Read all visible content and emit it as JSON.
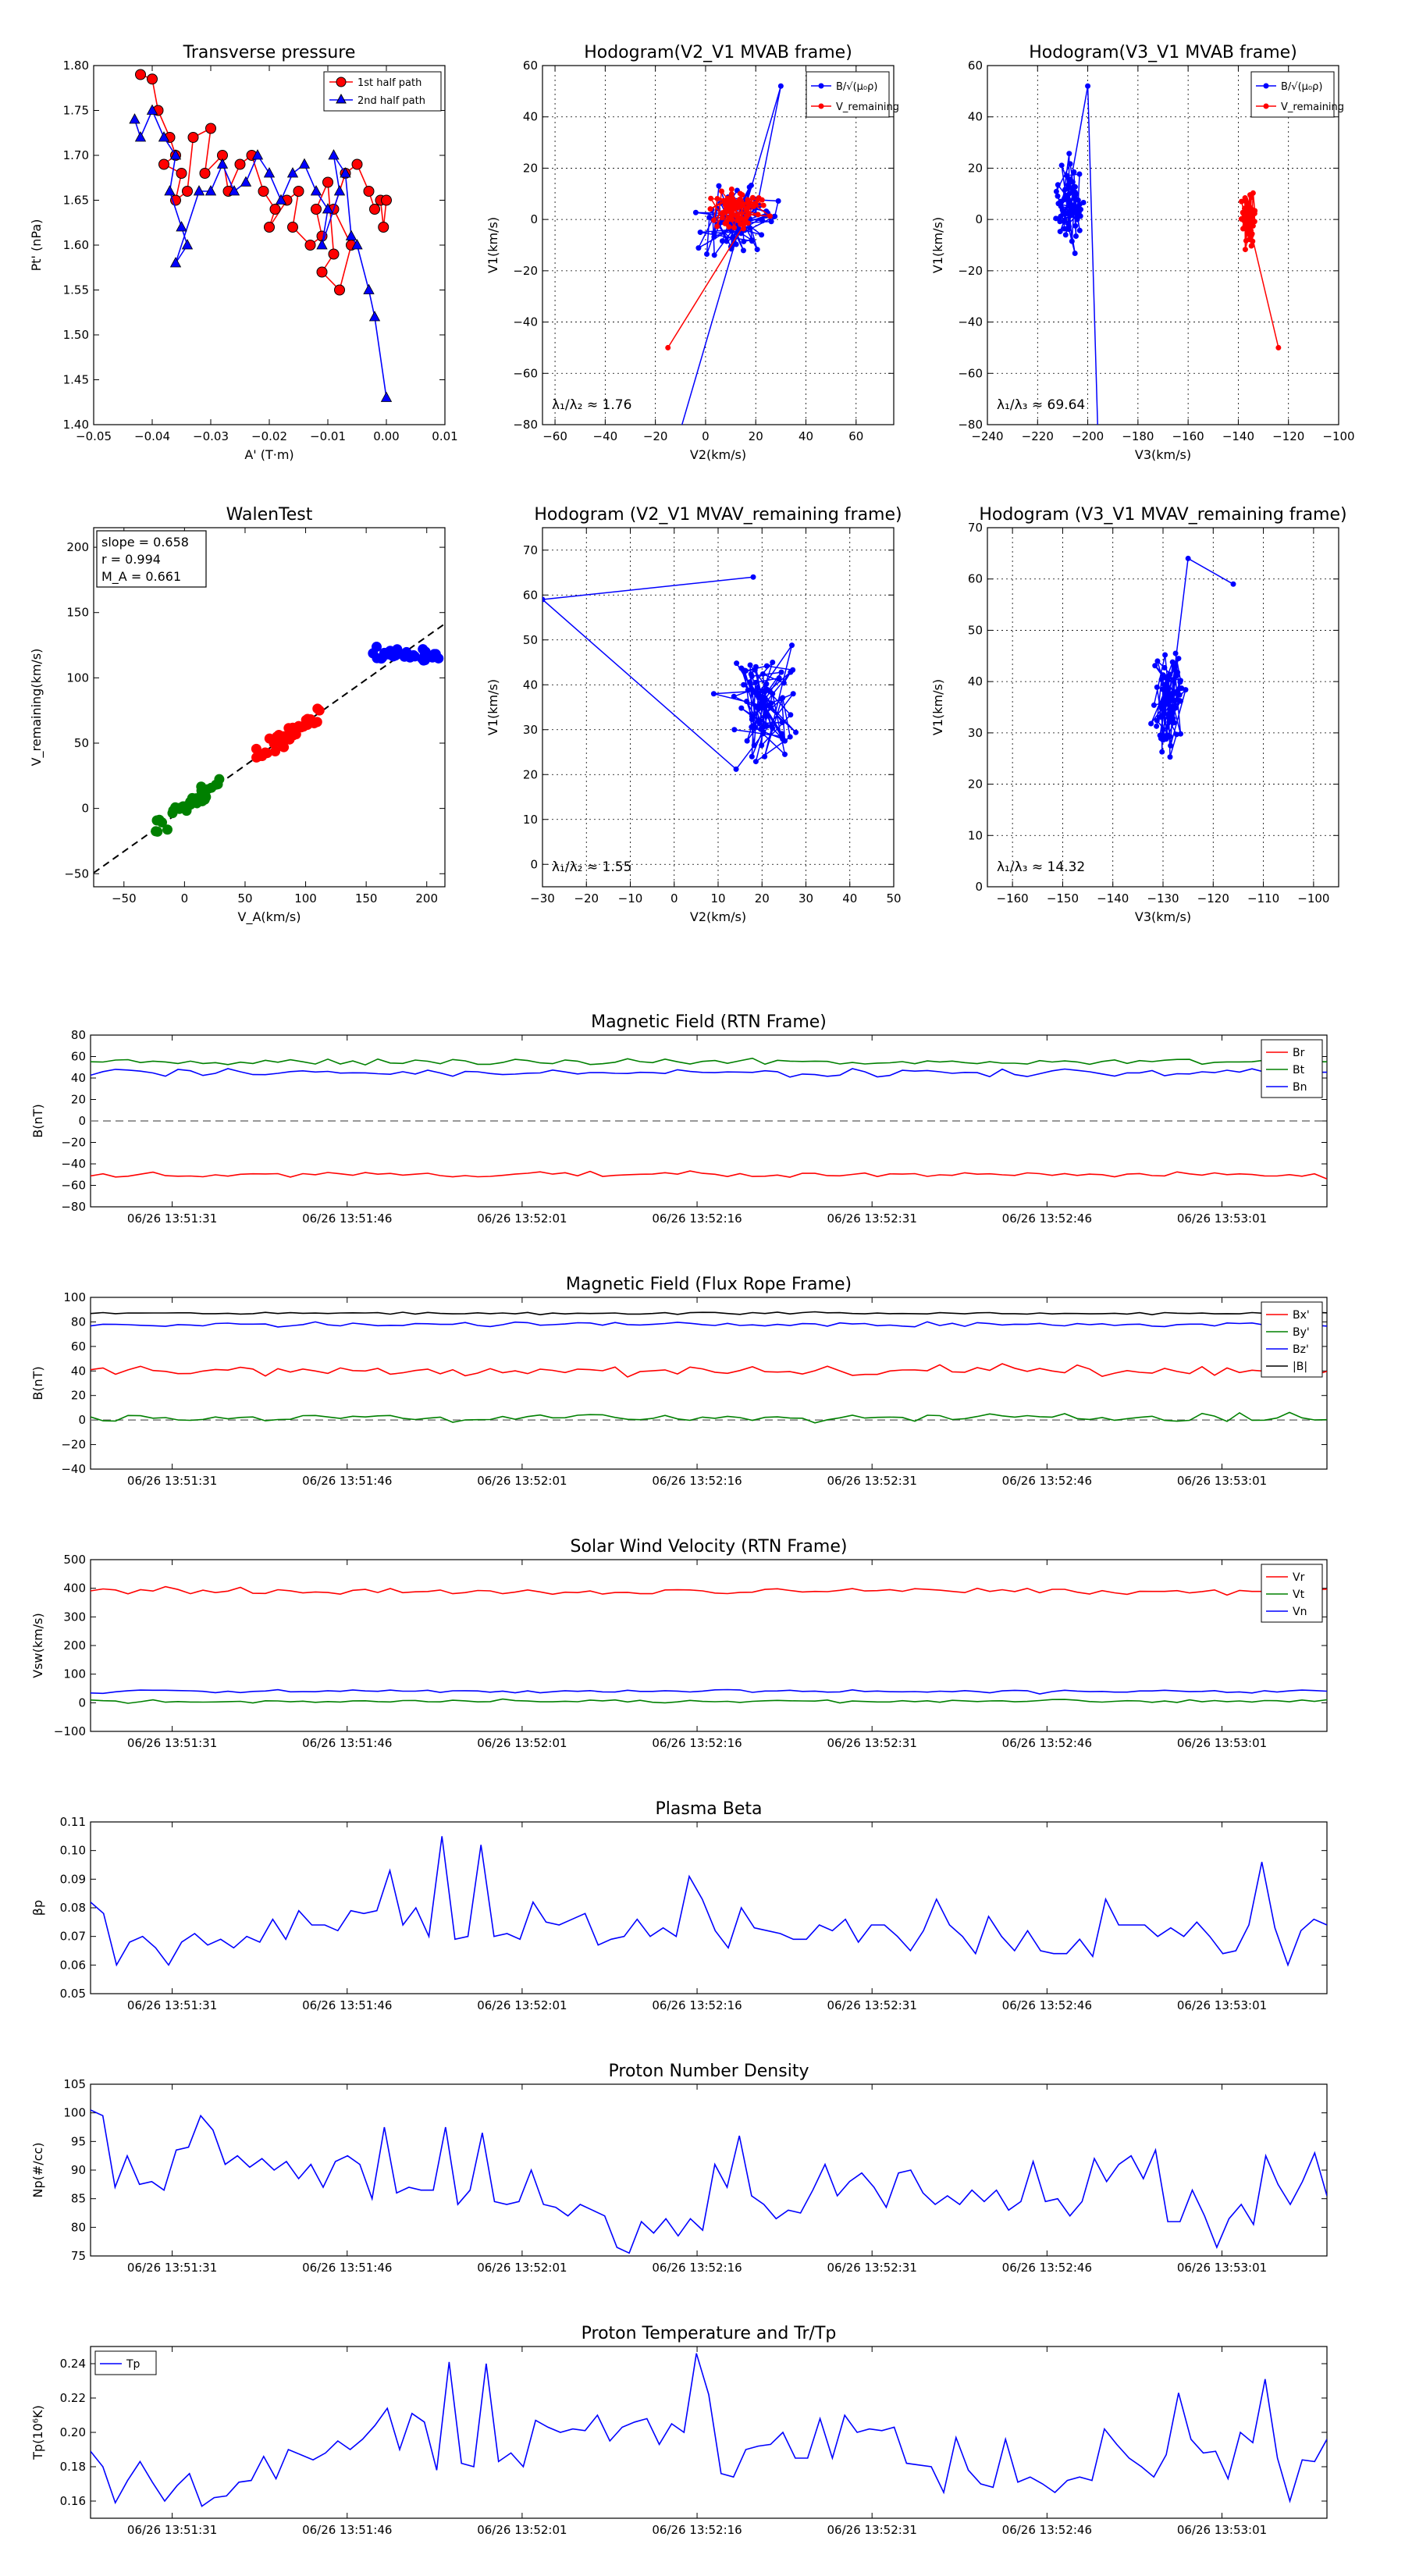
{
  "figure": {
    "description_label": ""
  },
  "chart_data": [
    {
      "id": "pt",
      "type": "line",
      "title": "Transverse pressure",
      "xlabel": "A' (T·m)",
      "ylabel": "Pt' (nPa)",
      "xlim": [
        -0.05,
        0.01
      ],
      "ylim": [
        1.4,
        1.8
      ],
      "xticks": [
        -0.05,
        -0.04,
        -0.03,
        -0.02,
        -0.01,
        0.0,
        0.01
      ],
      "xticklabels": [
        "−0.05",
        "−0.04",
        "−0.03",
        "−0.02",
        "−0.01",
        "0.00",
        "0.01"
      ],
      "yticks": [
        1.4,
        1.45,
        1.5,
        1.55,
        1.6,
        1.65,
        1.7,
        1.75,
        1.8
      ],
      "yticklabels": [
        "1.40",
        "1.45",
        "1.50",
        "1.55",
        "1.60",
        "1.65",
        "1.70",
        "1.75",
        "1.80"
      ],
      "legend": "top-right",
      "series": [
        {
          "name": "1st half path",
          "color": "#ff0000",
          "marker": "circle",
          "x": [
            -0.042,
            -0.04,
            -0.039,
            -0.037,
            -0.036,
            -0.038,
            -0.035,
            -0.036,
            -0.034,
            -0.033,
            -0.03,
            -0.031,
            -0.028,
            -0.027,
            -0.025,
            -0.023,
            -0.021,
            -0.019,
            -0.02,
            -0.017,
            -0.015,
            -0.016,
            -0.013,
            -0.011,
            -0.012,
            -0.01,
            -0.009,
            -0.011,
            -0.008,
            -0.006,
            -0.009,
            -0.007,
            -0.005,
            -0.003,
            -0.002,
            -0.001,
            -0.0005,
            0.0
          ],
          "y": [
            1.79,
            1.785,
            1.75,
            1.72,
            1.7,
            1.69,
            1.68,
            1.65,
            1.66,
            1.72,
            1.73,
            1.68,
            1.7,
            1.66,
            1.69,
            1.7,
            1.66,
            1.64,
            1.62,
            1.65,
            1.66,
            1.62,
            1.6,
            1.61,
            1.64,
            1.67,
            1.59,
            1.57,
            1.55,
            1.6,
            1.64,
            1.68,
            1.69,
            1.66,
            1.64,
            1.65,
            1.62,
            1.65
          ]
        },
        {
          "name": "2nd half path",
          "color": "#0000ff",
          "marker": "triangle",
          "x": [
            -0.043,
            -0.042,
            -0.04,
            -0.038,
            -0.036,
            -0.037,
            -0.035,
            -0.034,
            -0.036,
            -0.032,
            -0.03,
            -0.028,
            -0.026,
            -0.024,
            -0.022,
            -0.02,
            -0.018,
            -0.016,
            -0.014,
            -0.012,
            -0.01,
            -0.011,
            -0.008,
            -0.009,
            -0.007,
            -0.006,
            -0.005,
            -0.003,
            -0.002,
            0.0
          ],
          "y": [
            1.74,
            1.72,
            1.75,
            1.72,
            1.7,
            1.66,
            1.62,
            1.6,
            1.58,
            1.66,
            1.66,
            1.69,
            1.66,
            1.67,
            1.7,
            1.68,
            1.65,
            1.68,
            1.69,
            1.66,
            1.64,
            1.6,
            1.66,
            1.7,
            1.68,
            1.61,
            1.6,
            1.55,
            1.52,
            1.43
          ]
        }
      ]
    },
    {
      "id": "h1",
      "type": "line",
      "title": "Hodogram(V2_V1 MVAB frame)",
      "xlabel": "V2(km/s)",
      "ylabel": "V1(km/s)",
      "xlim": [
        -65,
        75
      ],
      "ylim": [
        -80,
        60
      ],
      "xticks": [
        -60,
        -40,
        -20,
        0,
        20,
        40,
        60
      ],
      "xticklabels": [
        "−60",
        "−40",
        "−20",
        "0",
        "20",
        "40",
        "60"
      ],
      "yticks": [
        -80,
        -60,
        -40,
        -20,
        0,
        20,
        40,
        60
      ],
      "yticklabels": [
        "−80",
        "−60",
        "−40",
        "−20",
        "0",
        "20",
        "40",
        "60"
      ],
      "annotation": "λ₁/λ₂ ≈ 1.76",
      "legend": "top-right",
      "series": [
        {
          "name": "B/√(μ₀ρ)",
          "color": "#0000ff",
          "marker": "dot",
          "x": [],
          "y": []
        },
        {
          "name": "V_remaining",
          "color": "#ff0000",
          "marker": "dot",
          "x": [],
          "y": []
        }
      ]
    },
    {
      "id": "h2",
      "type": "line",
      "title": "Hodogram(V3_V1 MVAB frame)",
      "xlabel": "V3(km/s)",
      "ylabel": "V1(km/s)",
      "xlim": [
        -240,
        -100
      ],
      "ylim": [
        -80,
        60
      ],
      "xticks": [
        -240,
        -220,
        -200,
        -180,
        -160,
        -140,
        -120,
        -100
      ],
      "xticklabels": [
        "−240",
        "−220",
        "−200",
        "−180",
        "−160",
        "−140",
        "−120",
        "−100"
      ],
      "yticks": [
        -80,
        -60,
        -40,
        -20,
        0,
        20,
        40,
        60
      ],
      "yticklabels": [
        "−80",
        "−60",
        "−40",
        "−20",
        "0",
        "20",
        "40",
        "60"
      ],
      "annotation": "λ₁/λ₃ ≈ 69.64",
      "legend": "top-right",
      "series": [
        {
          "name": "B/√(μ₀ρ)",
          "color": "#0000ff",
          "marker": "dot",
          "x": [],
          "y": []
        },
        {
          "name": "V_remaining",
          "color": "#ff0000",
          "marker": "dot",
          "x": [],
          "y": []
        }
      ]
    },
    {
      "id": "walen",
      "type": "scatter",
      "title": "WalenTest",
      "xlabel": "V_A(km/s)",
      "ylabel": "V_remaining(km/s)",
      "xlim": [
        -75,
        215
      ],
      "ylim": [
        -60,
        215
      ],
      "xticks": [
        -50,
        0,
        50,
        100,
        150,
        200
      ],
      "xticklabels": [
        "−50",
        "0",
        "50",
        "100",
        "150",
        "200"
      ],
      "yticks": [
        -50,
        0,
        50,
        100,
        150,
        200
      ],
      "yticklabels": [
        "−50",
        "0",
        "50",
        "100",
        "150",
        "200"
      ],
      "stats": [
        "slope = 0.658",
        "r = 0.994",
        "M_A = 0.661"
      ],
      "fit": {
        "slope": 0.658,
        "intercept": 0
      },
      "series": [
        {
          "name": "green",
          "color": "#008000",
          "x": [],
          "y": []
        },
        {
          "name": "red",
          "color": "#ff0000",
          "x": [],
          "y": []
        },
        {
          "name": "blue",
          "color": "#0000ff",
          "x": [],
          "y": []
        }
      ]
    },
    {
      "id": "h3",
      "type": "line",
      "title": "Hodogram (V2_V1 MVAV_remaining frame)",
      "xlabel": "V2(km/s)",
      "ylabel": "V1(km/s)",
      "xlim": [
        -30,
        50
      ],
      "ylim": [
        -5,
        75
      ],
      "xticks": [
        -30,
        -20,
        -10,
        0,
        10,
        20,
        30,
        40,
        50
      ],
      "xticklabels": [
        "−30",
        "−20",
        "−10",
        "0",
        "10",
        "20",
        "30",
        "40",
        "50"
      ],
      "yticks": [
        0,
        10,
        20,
        30,
        40,
        50,
        60,
        70
      ],
      "yticklabels": [
        "0",
        "10",
        "20",
        "30",
        "40",
        "50",
        "60",
        "70"
      ],
      "annotation": "λ₁/λ₂ ≈ 1.55",
      "series": [
        {
          "name": "V",
          "color": "#0000ff",
          "marker": "dot",
          "x": [],
          "y": []
        }
      ]
    },
    {
      "id": "h4",
      "type": "line",
      "title": "Hodogram (V3_V1 MVAV_remaining frame)",
      "xlabel": "V3(km/s)",
      "ylabel": "V1(km/s)",
      "xlim": [
        -165,
        -95
      ],
      "ylim": [
        0,
        70
      ],
      "xticks": [
        -160,
        -150,
        -140,
        -130,
        -120,
        -110,
        -100
      ],
      "xticklabels": [
        "−160",
        "−150",
        "−140",
        "−130",
        "−120",
        "−110",
        "−100"
      ],
      "yticks": [
        0,
        10,
        20,
        30,
        40,
        50,
        60,
        70
      ],
      "yticklabels": [
        "0",
        "10",
        "20",
        "30",
        "40",
        "50",
        "60",
        "70"
      ],
      "annotation": "λ₁/λ₃ ≈ 14.32",
      "series": [
        {
          "name": "V",
          "color": "#0000ff",
          "marker": "dot",
          "x": [],
          "y": []
        }
      ]
    },
    {
      "id": "bfield",
      "type": "line",
      "title": "Magnetic Field (RTN Frame)",
      "ylabel": "B(nT)",
      "ylim": [
        -80,
        80
      ],
      "yticks": [
        -80,
        -60,
        -40,
        -20,
        0,
        20,
        40,
        60,
        80
      ],
      "yticklabels": [
        "−80",
        "−60",
        "−40",
        "−20",
        "0",
        "20",
        "40",
        "60",
        "80"
      ],
      "zero_line": true,
      "legend": "top-right",
      "series": [
        {
          "name": "Br",
          "color": "#ff0000",
          "values": []
        },
        {
          "name": "Bt",
          "color": "#008000",
          "values": []
        },
        {
          "name": "Bn",
          "color": "#0000ff",
          "values": []
        }
      ]
    },
    {
      "id": "bflux",
      "type": "line",
      "title": "Magnetic Field (Flux Rope Frame)",
      "ylabel": "B(nT)",
      "ylim": [
        -40,
        100
      ],
      "yticks": [
        -40,
        -20,
        0,
        20,
        40,
        60,
        80,
        100
      ],
      "yticklabels": [
        "−40",
        "−20",
        "0",
        "20",
        "40",
        "60",
        "80",
        "100"
      ],
      "zero_line": true,
      "legend": "top-right",
      "series": [
        {
          "name": "Bx'",
          "color": "#ff0000",
          "values": []
        },
        {
          "name": "By'",
          "color": "#008000",
          "values": []
        },
        {
          "name": "Bz'",
          "color": "#0000ff",
          "values": []
        },
        {
          "name": "|B|",
          "color": "#000000",
          "values": []
        }
      ]
    },
    {
      "id": "vsw",
      "type": "line",
      "title": "Solar Wind Velocity (RTN Frame)",
      "ylabel": "Vsw(km/s)",
      "ylim": [
        -100,
        500
      ],
      "yticks": [
        -100,
        0,
        100,
        200,
        300,
        400,
        500
      ],
      "yticklabels": [
        "−100",
        "0",
        "100",
        "200",
        "300",
        "400",
        "500"
      ],
      "legend": "top-right",
      "series": [
        {
          "name": "Vr",
          "color": "#ff0000",
          "values": []
        },
        {
          "name": "Vt",
          "color": "#008000",
          "values": []
        },
        {
          "name": "Vn",
          "color": "#0000ff",
          "values": []
        }
      ]
    },
    {
      "id": "beta",
      "type": "line",
      "title": "Plasma Beta",
      "ylabel": "βp",
      "ylim": [
        0.05,
        0.11
      ],
      "yticks": [
        0.05,
        0.06,
        0.07,
        0.08,
        0.09,
        0.1,
        0.11
      ],
      "yticklabels": [
        "0.05",
        "0.06",
        "0.07",
        "0.08",
        "0.09",
        "0.10",
        "0.11"
      ],
      "series": [
        {
          "name": "beta",
          "color": "#0000ff",
          "values": [
            0.082,
            0.078,
            0.06,
            0.068,
            0.07,
            0.066,
            0.06,
            0.068,
            0.071,
            0.067,
            0.069,
            0.066,
            0.07,
            0.068,
            0.076,
            0.069,
            0.079,
            0.074,
            0.074,
            0.072,
            0.079,
            0.078,
            0.079,
            0.093,
            0.074,
            0.08,
            0.07,
            0.105,
            0.069,
            0.07,
            0.102,
            0.07,
            0.071,
            0.069,
            0.082,
            0.075,
            0.074,
            0.076,
            0.078,
            0.067,
            0.069,
            0.07,
            0.076,
            0.07,
            0.073,
            0.07,
            0.091,
            0.083,
            0.072,
            0.066,
            0.08,
            0.073,
            0.072,
            0.071,
            0.069,
            0.069,
            0.074,
            0.072,
            0.076,
            0.068,
            0.074,
            0.074,
            0.07,
            0.065,
            0.072,
            0.083,
            0.074,
            0.07,
            0.064,
            0.077,
            0.07,
            0.065,
            0.072,
            0.065,
            0.064,
            0.064,
            0.069,
            0.063,
            0.083,
            0.074,
            0.074,
            0.074,
            0.07,
            0.073,
            0.07,
            0.075,
            0.07,
            0.064,
            0.065,
            0.074,
            0.096,
            0.073,
            0.06,
            0.072,
            0.076,
            0.074
          ]
        }
      ]
    },
    {
      "id": "np",
      "type": "line",
      "title": "Proton Number Density",
      "ylabel": "Np(#/cc)",
      "ylim": [
        75,
        105
      ],
      "yticks": [
        75,
        80,
        85,
        90,
        95,
        100,
        105
      ],
      "yticklabels": [
        "75",
        "80",
        "85",
        "90",
        "95",
        "100",
        "105"
      ],
      "series": [
        {
          "name": "Np",
          "color": "#0000ff",
          "values": [
            100.5,
            99.5,
            87.0,
            92.5,
            87.5,
            88.0,
            86.5,
            93.5,
            94.0,
            99.5,
            97.0,
            91.0,
            92.5,
            90.5,
            92.0,
            90.0,
            91.5,
            88.5,
            91.0,
            87.0,
            91.5,
            92.5,
            91.0,
            85.0,
            97.5,
            86.0,
            87.0,
            86.5,
            86.5,
            97.5,
            84.0,
            86.5,
            96.5,
            84.5,
            84.0,
            84.5,
            90.0,
            84.0,
            83.5,
            82.0,
            84.0,
            83.0,
            82.0,
            76.5,
            75.5,
            81.0,
            79.0,
            81.5,
            78.5,
            81.5,
            79.5,
            91.0,
            87.0,
            96.0,
            85.5,
            84.0,
            81.5,
            83.0,
            82.5,
            86.5,
            91.0,
            85.5,
            88.0,
            89.5,
            87.0,
            83.5,
            89.5,
            90.0,
            86.0,
            84.0,
            85.5,
            84.0,
            86.5,
            84.5,
            86.5,
            83.0,
            84.5,
            91.5,
            84.5,
            85.0,
            82.0,
            84.5,
            92.0,
            88.0,
            91.0,
            92.5,
            88.5,
            93.5,
            81.0,
            81.0,
            86.5,
            82.0,
            76.5,
            81.5,
            84.0,
            80.5,
            92.5,
            87.5,
            84.0,
            88.0,
            93.0,
            85.5
          ]
        }
      ]
    },
    {
      "id": "tp",
      "type": "line",
      "title": "Proton Temperature and Tr/Tp",
      "ylabel": "Tp(10⁶K)",
      "ylim": [
        0.15,
        0.25
      ],
      "yticks": [
        0.16,
        0.18,
        0.2,
        0.22,
        0.24
      ],
      "yticklabels": [
        "0.16",
        "0.18",
        "0.20",
        "0.22",
        "0.24"
      ],
      "legend": "top-left",
      "series": [
        {
          "name": "Tp",
          "color": "#0000ff",
          "values": [
            0.189,
            0.18,
            0.159,
            0.172,
            0.183,
            0.171,
            0.16,
            0.169,
            0.176,
            0.157,
            0.162,
            0.163,
            0.171,
            0.172,
            0.186,
            0.173,
            0.19,
            0.187,
            0.184,
            0.188,
            0.195,
            0.19,
            0.196,
            0.204,
            0.214,
            0.19,
            0.211,
            0.206,
            0.178,
            0.241,
            0.182,
            0.18,
            0.24,
            0.183,
            0.188,
            0.18,
            0.207,
            0.203,
            0.2,
            0.202,
            0.201,
            0.21,
            0.195,
            0.203,
            0.206,
            0.208,
            0.193,
            0.205,
            0.2,
            0.246,
            0.222,
            0.176,
            0.174,
            0.19,
            0.192,
            0.193,
            0.2,
            0.185,
            0.185,
            0.208,
            0.185,
            0.21,
            0.2,
            0.202,
            0.201,
            0.203,
            0.182,
            0.181,
            0.18,
            0.165,
            0.197,
            0.178,
            0.17,
            0.168,
            0.196,
            0.171,
            0.174,
            0.17,
            0.165,
            0.172,
            0.174,
            0.172,
            0.202,
            0.193,
            0.185,
            0.18,
            0.174,
            0.187,
            0.223,
            0.196,
            0.188,
            0.189,
            0.173,
            0.2,
            0.194,
            0.231,
            0.185,
            0.16,
            0.184,
            0.183,
            0.196
          ]
        }
      ]
    }
  ],
  "time_axis": {
    "start": "06/26 13:51:24",
    "end": "06/26 13:53:10",
    "tick_labels": [
      "06/26 13:51:31",
      "06/26 13:51:46",
      "06/26 13:52:01",
      "06/26 13:52:16",
      "06/26 13:52:31",
      "06/26 13:52:46",
      "06/26 13:53:01"
    ],
    "tick_seconds": [
      7,
      22,
      37,
      52,
      67,
      82,
      97
    ],
    "span_seconds": 106
  }
}
